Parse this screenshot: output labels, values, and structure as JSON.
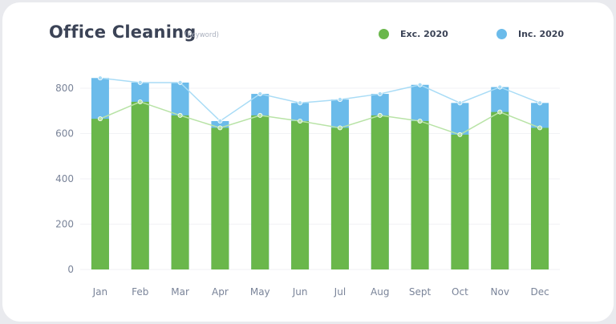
{
  "header": {
    "title": "Office Cleaning",
    "subtitle": "(Keyword)"
  },
  "legend": [
    {
      "label": "Exc. 2020",
      "color": "#6ab74b"
    },
    {
      "label": "Inc. 2020",
      "color": "#6bbbea"
    }
  ],
  "chart_data": {
    "type": "bar",
    "title": "Office Cleaning",
    "subtitle": "(Keyword)",
    "categories": [
      "Jan",
      "Feb",
      "Mar",
      "Apr",
      "May",
      "Jun",
      "Jul",
      "Aug",
      "Sept",
      "Oct",
      "Nov",
      "Dec"
    ],
    "series": [
      {
        "name": "Exc. 2020",
        "color": "#6ab74b",
        "values": [
          665,
          740,
          680,
          625,
          680,
          655,
          625,
          680,
          655,
          595,
          695,
          625
        ]
      },
      {
        "name": "Inc. 2020",
        "color": "#6bbbea",
        "values": [
          845,
          825,
          825,
          655,
          775,
          735,
          750,
          775,
          815,
          735,
          805,
          735
        ]
      }
    ],
    "yticks": [
      0,
      200,
      400,
      600,
      800
    ],
    "ylim": [
      0,
      900
    ],
    "xlabel": "",
    "ylabel": "",
    "legend_position": "top-right",
    "grid": true
  }
}
